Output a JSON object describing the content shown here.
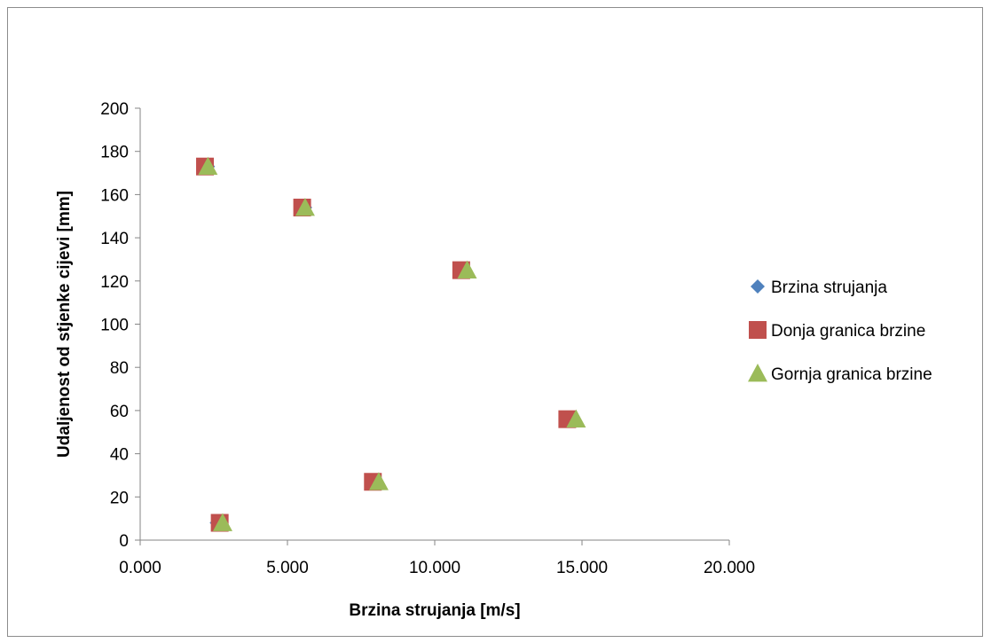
{
  "chart_data": {
    "type": "scatter",
    "title": "",
    "xlabel": "Brzina strujanja [m/s]",
    "ylabel": "Udaljenost od stjenke cijevi [mm]",
    "xlim": [
      0,
      20
    ],
    "ylim": [
      0,
      200
    ],
    "x_ticks": [
      "0.000",
      "5.000",
      "10.000",
      "15.000",
      "20.000"
    ],
    "y_ticks": [
      "0",
      "20",
      "40",
      "60",
      "80",
      "100",
      "120",
      "140",
      "160",
      "180",
      "200"
    ],
    "x_tick_values": [
      0,
      5,
      10,
      15,
      20
    ],
    "y_tick_values": [
      0,
      20,
      40,
      60,
      80,
      100,
      120,
      140,
      160,
      180,
      200
    ],
    "grid": false,
    "legend_position": "right",
    "series": [
      {
        "name": "Brzina strujanja",
        "marker": "diamond",
        "color": "#4f81bd",
        "x": [
          2.6,
          8.0,
          14.7,
          11.0,
          5.6,
          2.3
        ],
        "y": [
          8,
          27,
          56,
          125,
          154,
          173
        ]
      },
      {
        "name": "Donja granica brzine",
        "marker": "square",
        "color": "#c0504d",
        "x": [
          2.7,
          7.9,
          14.5,
          10.9,
          5.5,
          2.2
        ],
        "y": [
          8,
          27,
          56,
          125,
          154,
          173
        ]
      },
      {
        "name": "Gornja granica brzine",
        "marker": "triangle",
        "color": "#9bbb59",
        "x": [
          2.8,
          8.1,
          14.8,
          11.1,
          5.6,
          2.3
        ],
        "y": [
          8,
          27,
          56,
          125,
          154,
          173
        ]
      }
    ]
  }
}
